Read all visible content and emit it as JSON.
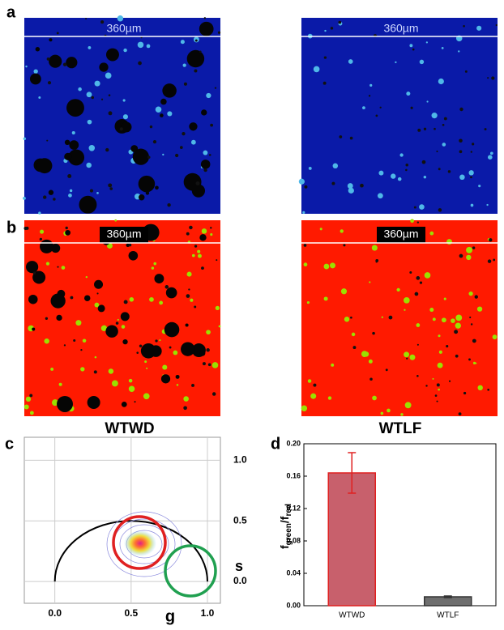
{
  "panel_labels": {
    "a": "a",
    "b": "b",
    "c": "c",
    "d": "d"
  },
  "scale_bar": "360µm",
  "samples": [
    "WTWD",
    "WTLF"
  ],
  "chart_data": [
    {
      "type": "phasor",
      "xlabel": "g",
      "ylabel": "s",
      "xlim": [
        -0.2,
        1.085
      ],
      "ylim": [
        -0.18,
        1.19
      ],
      "xticks": [
        {
          "value": 0,
          "label": "0.0"
        },
        {
          "value": 0.5,
          "label": "0.5"
        },
        {
          "value": 1,
          "label": "1.0"
        }
      ],
      "yticks": [
        {
          "value": 0,
          "label": "0.0"
        },
        {
          "value": 0.5,
          "label": "0.5"
        },
        {
          "value": 1,
          "label": "1.0"
        }
      ],
      "grid": true
    },
    {
      "type": "bar",
      "ylabel": [
        "f",
        "green",
        "/f",
        "red"
      ],
      "categories": [
        "WTWD",
        "WTLF"
      ],
      "values": [
        0.164,
        0.011
      ],
      "errors": [
        0.025,
        0.001
      ],
      "colors": [
        "#c8606c",
        "#6e6e6e"
      ],
      "edge_colors": [
        "#e02020",
        "#333333"
      ],
      "ylim": [
        0,
        0.2
      ],
      "yticks": [
        {
          "value": 0,
          "label": "0.00"
        },
        {
          "value": 0.04,
          "label": "0.04"
        },
        {
          "value": 0.08,
          "label": "0.08"
        },
        {
          "value": 0.12,
          "label": "0.12"
        },
        {
          "value": 0.16,
          "label": "0.16"
        },
        {
          "value": 0.2,
          "label": "0.20"
        }
      ]
    }
  ]
}
